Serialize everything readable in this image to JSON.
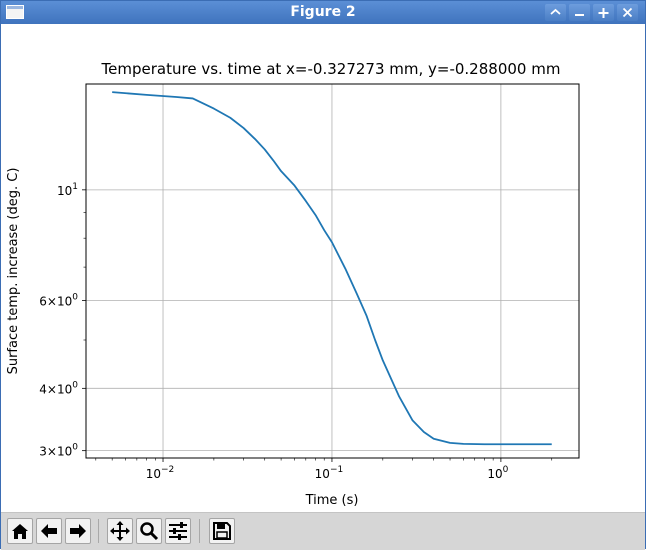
{
  "window": {
    "title": "Figure 2",
    "buttons": [
      "shade-icon",
      "minimize-icon",
      "maximize-icon",
      "close-icon"
    ]
  },
  "toolbar": {
    "buttons": [
      {
        "name": "home-button",
        "icon": "home-icon"
      },
      {
        "name": "back-button",
        "icon": "arrow-left-icon"
      },
      {
        "name": "forward-button",
        "icon": "arrow-right-icon"
      },
      {
        "name": "pan-button",
        "icon": "move-icon"
      },
      {
        "name": "zoom-button",
        "icon": "magnifier-icon"
      },
      {
        "name": "configure-subplots-button",
        "icon": "sliders-icon"
      },
      {
        "name": "save-button",
        "icon": "floppy-disk-icon"
      }
    ]
  },
  "chart_data": {
    "type": "line",
    "title": "Temperature vs. time at x=-0.327273 mm, y=-0.288000 mm",
    "xlabel": "Time (s)",
    "ylabel": "Surface temp. increase (deg. C)",
    "xscale": "log",
    "yscale": "log",
    "xlim": [
      0.0035,
      2.9
    ],
    "ylim": [
      2.9,
      16.3
    ],
    "grid": true,
    "x_ticks": [
      {
        "value": 0.01,
        "base": "10",
        "exp": "−2"
      },
      {
        "value": 0.1,
        "base": "10",
        "exp": "−1"
      },
      {
        "value": 1,
        "base": "10",
        "exp": "0"
      }
    ],
    "y_ticks": [
      {
        "value": 3,
        "mant": "3",
        "exp": "0"
      },
      {
        "value": 4,
        "mant": "4",
        "exp": "0"
      },
      {
        "value": 6,
        "mant": "6",
        "exp": "0"
      },
      {
        "value": 10,
        "mant": "",
        "exp": "1"
      }
    ],
    "y_minor": [
      5,
      7,
      8,
      9
    ],
    "line_color": "#1f77b4",
    "series": [
      {
        "x": [
          0.005,
          0.008,
          0.012,
          0.015,
          0.02,
          0.025,
          0.03,
          0.035,
          0.04,
          0.045,
          0.05,
          0.06,
          0.07,
          0.08,
          0.09,
          0.1,
          0.12,
          0.14,
          0.16,
          0.18,
          0.2,
          0.25,
          0.3,
          0.35,
          0.4,
          0.5,
          0.6,
          0.8,
          1.0,
          1.5,
          2.0
        ],
        "y": [
          15.7,
          15.5,
          15.35,
          15.25,
          14.55,
          13.95,
          13.3,
          12.65,
          12.05,
          11.45,
          10.9,
          10.2,
          9.5,
          8.9,
          8.3,
          7.85,
          6.95,
          6.2,
          5.6,
          5.0,
          4.55,
          3.85,
          3.45,
          3.27,
          3.17,
          3.11,
          3.095,
          3.09,
          3.09,
          3.09,
          3.09
        ]
      }
    ]
  }
}
